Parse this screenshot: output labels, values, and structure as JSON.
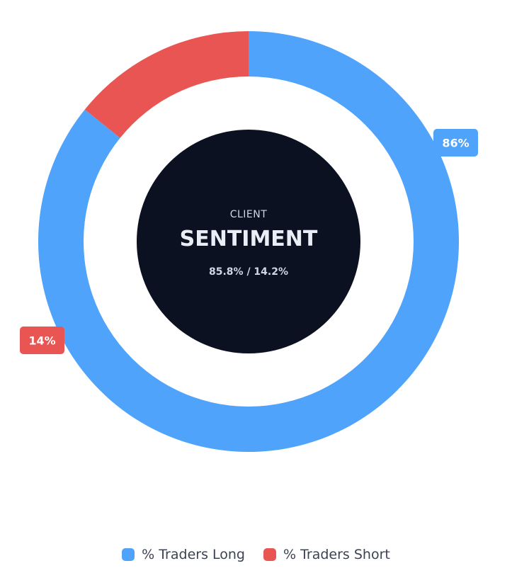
{
  "chart_data": {
    "type": "pie",
    "variant": "donut",
    "categories": [
      "% Traders Long",
      "% Traders Short"
    ],
    "values": [
      85.8,
      14.2
    ],
    "data_labels": [
      "86%",
      "14%"
    ],
    "colors": [
      "#4fa3fb",
      "#e85552"
    ],
    "center": {
      "subtitle": "CLIENT",
      "title": "SENTIMENT",
      "ratio": "85.8% / 14.2%",
      "background": "#0b1120"
    },
    "legend": {
      "position": "bottom",
      "entries": [
        "% Traders Long",
        "% Traders Short"
      ]
    },
    "start_angle_deg": 270,
    "direction": "clockwise"
  }
}
